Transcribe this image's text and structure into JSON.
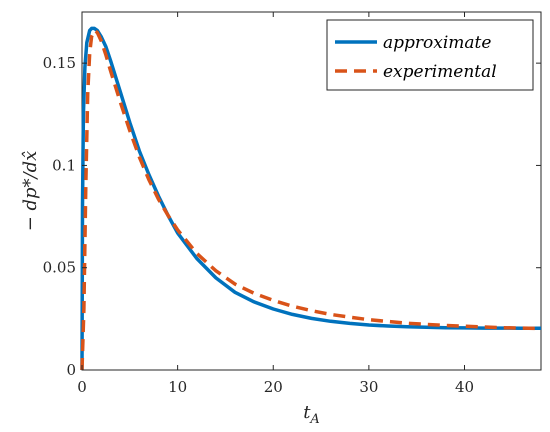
{
  "chart_data": {
    "type": "line",
    "title": "",
    "xlabel": "t_A",
    "ylabel": "− dp*/dx̂",
    "xlim": [
      0,
      48
    ],
    "ylim": [
      0,
      0.175
    ],
    "xticks": [
      "0",
      "10",
      "20",
      "30",
      "40"
    ],
    "yticks": [
      "0",
      "0.05",
      "0.1",
      "0.15"
    ],
    "legend_position": "top-right",
    "grid": false,
    "series": [
      {
        "name": "approximate",
        "color": "#0072BD",
        "style": "solid",
        "x": [
          0,
          0.05,
          0.15,
          0.3,
          0.5,
          0.8,
          1.0,
          1.3,
          1.6,
          2.0,
          2.5,
          3,
          4,
          5,
          6,
          7,
          8,
          9,
          10,
          12,
          14,
          16,
          18,
          20,
          22,
          24,
          26,
          28,
          30,
          32,
          34,
          36,
          38,
          40,
          42,
          44,
          46,
          48
        ],
        "y": [
          0,
          0.08,
          0.125,
          0.148,
          0.16,
          0.166,
          0.167,
          0.167,
          0.166,
          0.163,
          0.158,
          0.151,
          0.136,
          0.121,
          0.107,
          0.0955,
          0.085,
          0.0755,
          0.067,
          0.0545,
          0.045,
          0.038,
          0.0333,
          0.0298,
          0.0272,
          0.0252,
          0.0238,
          0.0228,
          0.022,
          0.0215,
          0.0211,
          0.0209,
          0.0207,
          0.0206,
          0.0205,
          0.0205,
          0.0204,
          0.0204
        ]
      },
      {
        "name": "experimental",
        "color": "#D95319",
        "style": "dashed",
        "x": [
          0,
          0.2,
          0.4,
          0.6,
          0.8,
          1.0,
          1.3,
          1.6,
          2.0,
          2.5,
          3,
          4,
          5,
          6,
          7,
          8,
          9,
          10,
          12,
          14,
          16,
          18,
          20,
          22,
          24,
          26,
          28,
          30,
          32,
          34,
          36,
          38,
          40,
          42,
          44,
          46,
          48
        ],
        "y": [
          0,
          0.03,
          0.09,
          0.135,
          0.155,
          0.163,
          0.166,
          0.165,
          0.161,
          0.154,
          0.146,
          0.131,
          0.117,
          0.104,
          0.093,
          0.0835,
          0.0755,
          0.0685,
          0.057,
          0.0485,
          0.042,
          0.0375,
          0.034,
          0.0312,
          0.029,
          0.0272,
          0.0258,
          0.0246,
          0.0237,
          0.0229,
          0.0223,
          0.0218,
          0.0214,
          0.021,
          0.0207,
          0.0205,
          0.0203
        ]
      }
    ]
  }
}
